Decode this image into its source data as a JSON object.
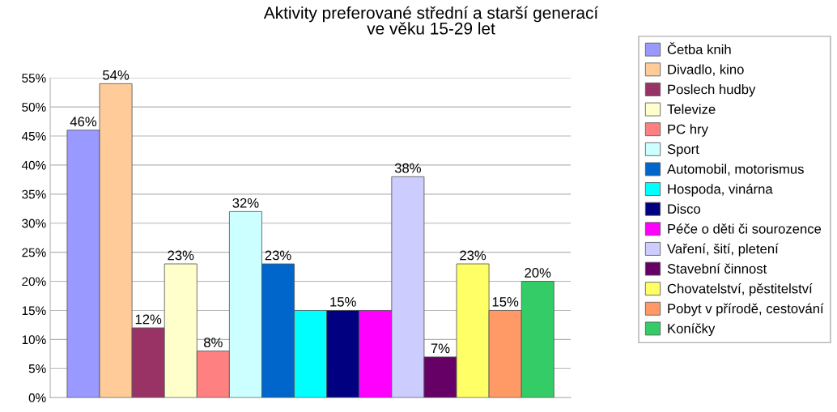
{
  "chart_data": {
    "type": "bar",
    "title": "Aktivity preferované střední a starší generací\nve věku 15-29 let",
    "categories": [
      null
    ],
    "series": [
      {
        "name": "Četba knih",
        "color": "#9999ff",
        "values": [
          46
        ],
        "value_labels": [
          "46%"
        ]
      },
      {
        "name": "Divadlo, kino",
        "color": "#ffcc99",
        "values": [
          54
        ],
        "value_labels": [
          "54%"
        ]
      },
      {
        "name": "Poslech hudby",
        "color": "#993366",
        "values": [
          12
        ],
        "value_labels": [
          "12%"
        ]
      },
      {
        "name": "Televize",
        "color": "#ffffcc",
        "values": [
          23
        ],
        "value_labels": [
          "23%"
        ]
      },
      {
        "name": "PC hry",
        "color": "#ff8080",
        "values": [
          8
        ],
        "value_labels": [
          "8%"
        ]
      },
      {
        "name": "Sport",
        "color": "#ccffff",
        "values": [
          32
        ],
        "value_labels": [
          "32%"
        ]
      },
      {
        "name": "Automobil, motorismus",
        "color": "#0066cc",
        "values": [
          23
        ],
        "value_labels": [
          "23%"
        ]
      },
      {
        "name": "Hospoda, vinárna",
        "color": "#00ffff",
        "values": [
          15
        ],
        "value_labels": [
          null
        ]
      },
      {
        "name": "Disco",
        "color": "#000080",
        "values": [
          15
        ],
        "value_labels": [
          "15%"
        ]
      },
      {
        "name": "Péče o děti či sourozence",
        "color": "#ff00ff",
        "values": [
          15
        ],
        "value_labels": [
          null
        ]
      },
      {
        "name": "Vaření, šití, pletení",
        "color": "#ccccff",
        "values": [
          38
        ],
        "value_labels": [
          "38%"
        ]
      },
      {
        "name": "Stavební činnost",
        "color": "#660066",
        "values": [
          7
        ],
        "value_labels": [
          "7%"
        ]
      },
      {
        "name": "Chovatelství, pěstitelství",
        "color": "#ffff66",
        "values": [
          23
        ],
        "value_labels": [
          "23%"
        ]
      },
      {
        "name": "Pobyt v přírodě, cestování",
        "color": "#ff9966",
        "values": [
          15
        ],
        "value_labels": [
          "15%"
        ]
      },
      {
        "name": "Koníčky",
        "color": "#33cc66",
        "values": [
          20
        ],
        "value_labels": [
          "20%"
        ]
      }
    ],
    "ylim": [
      0,
      55
    ],
    "yticks": [
      {
        "value": 0,
        "label": "0%"
      },
      {
        "value": 5,
        "label": "5%"
      },
      {
        "value": 10,
        "label": "10%"
      },
      {
        "value": 15,
        "label": "15%"
      },
      {
        "value": 20,
        "label": "20%"
      },
      {
        "value": 25,
        "label": "25%"
      },
      {
        "value": 30,
        "label": "30%"
      },
      {
        "value": 35,
        "label": "35%"
      },
      {
        "value": 40,
        "label": "40%"
      },
      {
        "value": 45,
        "label": "45%"
      },
      {
        "value": 50,
        "label": "50%"
      },
      {
        "value": 55,
        "label": "55%"
      }
    ],
    "grid": "y",
    "legend": "right"
  }
}
